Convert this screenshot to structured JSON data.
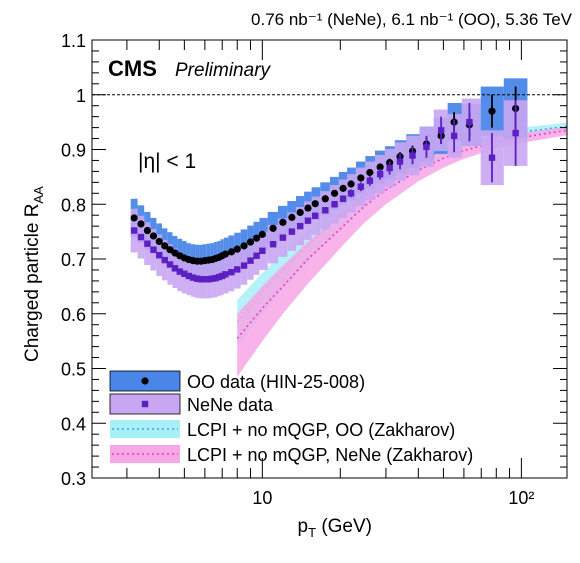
{
  "chart_data": {
    "type": "scatter",
    "header": "0.76 nb⁻¹ (NeNe), 6.1 nb⁻¹ (OO), 5.36 TeV",
    "experiment": "CMS",
    "status": "Preliminary",
    "annotation": "|η| < 1",
    "xlabel": "p",
    "xlabel_sub": "T",
    "xlabel_unit": " (GeV)",
    "ylabel": "Charged particle R",
    "ylabel_sub": "AA",
    "xscale": "log",
    "xlim": [
      2.2,
      150
    ],
    "ylim": [
      0.3,
      1.1
    ],
    "yticks": [
      "0.3",
      "0.4",
      "0.5",
      "0.6",
      "0.7",
      "0.8",
      "0.9",
      "1",
      "1.1"
    ],
    "xtick_labels": [
      "10",
      "10²"
    ],
    "reference_line": 1,
    "legend_position": "bottom-left",
    "series": [
      {
        "name": "OO data (HIN-25-008)",
        "color": "#000000",
        "band_color": "#4a86e8",
        "marker": "circle",
        "x": [
          3.2,
          3.4,
          3.6,
          3.8,
          4.0,
          4.2,
          4.4,
          4.6,
          4.8,
          5.0,
          5.2,
          5.4,
          5.6,
          5.8,
          6.0,
          6.2,
          6.4,
          6.6,
          6.8,
          7.0,
          7.2,
          7.6,
          8.0,
          8.5,
          9.0,
          9.5,
          10.0,
          11.0,
          12.0,
          13.0,
          14.0,
          15.0,
          16.0,
          17.5,
          19.0,
          20.5,
          22.0,
          24.0,
          26.0,
          28.5,
          31.0,
          34.0,
          38.0,
          43.0,
          49.0,
          55.0,
          63.0,
          77.0,
          95.0
        ],
        "y": [
          0.775,
          0.764,
          0.752,
          0.742,
          0.732,
          0.724,
          0.717,
          0.711,
          0.706,
          0.702,
          0.699,
          0.697,
          0.696,
          0.696,
          0.697,
          0.698,
          0.699,
          0.701,
          0.703,
          0.706,
          0.709,
          0.713,
          0.718,
          0.724,
          0.731,
          0.738,
          0.745,
          0.756,
          0.767,
          0.776,
          0.785,
          0.793,
          0.801,
          0.81,
          0.82,
          0.829,
          0.837,
          0.848,
          0.858,
          0.868,
          0.876,
          0.887,
          0.897,
          0.91,
          0.925,
          0.95,
          0.945,
          0.97,
          0.975
        ],
        "yerr_stat": [
          0.002,
          0.002,
          0.002,
          0.002,
          0.002,
          0.002,
          0.002,
          0.002,
          0.002,
          0.002,
          0.002,
          0.002,
          0.002,
          0.002,
          0.002,
          0.002,
          0.002,
          0.002,
          0.002,
          0.002,
          0.002,
          0.002,
          0.002,
          0.002,
          0.002,
          0.002,
          0.002,
          0.002,
          0.002,
          0.002,
          0.002,
          0.003,
          0.003,
          0.003,
          0.003,
          0.004,
          0.004,
          0.005,
          0.005,
          0.006,
          0.007,
          0.008,
          0.01,
          0.012,
          0.015,
          0.018,
          0.022,
          0.03,
          0.04
        ],
        "yerr_sys": [
          0.035,
          0.034,
          0.034,
          0.033,
          0.033,
          0.032,
          0.032,
          0.031,
          0.031,
          0.031,
          0.03,
          0.03,
          0.03,
          0.03,
          0.03,
          0.03,
          0.03,
          0.03,
          0.03,
          0.03,
          0.03,
          0.03,
          0.03,
          0.03,
          0.03,
          0.03,
          0.03,
          0.03,
          0.03,
          0.03,
          0.03,
          0.03,
          0.03,
          0.03,
          0.03,
          0.03,
          0.03,
          0.03,
          0.03,
          0.03,
          0.03,
          0.03,
          0.031,
          0.032,
          0.033,
          0.035,
          0.038,
          0.045,
          0.055
        ]
      },
      {
        "name": "NeNe data",
        "color": "#5b1fc2",
        "band_color": "#c9a6f2",
        "marker": "square",
        "x": [
          3.2,
          3.4,
          3.6,
          3.8,
          4.0,
          4.2,
          4.4,
          4.6,
          4.8,
          5.0,
          5.2,
          5.4,
          5.6,
          5.8,
          6.0,
          6.2,
          6.4,
          6.6,
          6.8,
          7.0,
          7.2,
          7.6,
          8.0,
          8.5,
          9.0,
          9.5,
          10.0,
          11.0,
          12.0,
          13.0,
          14.0,
          15.0,
          16.0,
          17.5,
          19.0,
          20.5,
          22.0,
          24.0,
          26.0,
          28.5,
          31.0,
          34.0,
          38.0,
          43.0,
          49.0,
          55.0,
          63.0,
          77.0,
          95.0
        ],
        "y": [
          0.752,
          0.74,
          0.728,
          0.717,
          0.707,
          0.698,
          0.69,
          0.683,
          0.677,
          0.673,
          0.669,
          0.666,
          0.664,
          0.663,
          0.663,
          0.663,
          0.664,
          0.665,
          0.667,
          0.669,
          0.672,
          0.676,
          0.681,
          0.688,
          0.697,
          0.706,
          0.715,
          0.727,
          0.739,
          0.75,
          0.76,
          0.77,
          0.779,
          0.789,
          0.8,
          0.81,
          0.82,
          0.832,
          0.843,
          0.855,
          0.866,
          0.878,
          0.889,
          0.905,
          0.935,
          0.925,
          0.95,
          0.885,
          0.93
        ],
        "yerr_stat": [
          0.003,
          0.003,
          0.003,
          0.003,
          0.003,
          0.003,
          0.003,
          0.003,
          0.003,
          0.003,
          0.003,
          0.003,
          0.003,
          0.003,
          0.003,
          0.003,
          0.003,
          0.003,
          0.003,
          0.003,
          0.003,
          0.003,
          0.003,
          0.003,
          0.003,
          0.003,
          0.003,
          0.003,
          0.004,
          0.004,
          0.004,
          0.004,
          0.005,
          0.005,
          0.006,
          0.006,
          0.007,
          0.008,
          0.009,
          0.01,
          0.012,
          0.014,
          0.016,
          0.02,
          0.025,
          0.03,
          0.035,
          0.045,
          0.06
        ],
        "yerr_sys": [
          0.04,
          0.039,
          0.039,
          0.038,
          0.038,
          0.037,
          0.037,
          0.036,
          0.036,
          0.036,
          0.035,
          0.035,
          0.035,
          0.035,
          0.035,
          0.035,
          0.035,
          0.035,
          0.035,
          0.035,
          0.035,
          0.035,
          0.035,
          0.035,
          0.035,
          0.035,
          0.035,
          0.035,
          0.035,
          0.035,
          0.035,
          0.035,
          0.035,
          0.035,
          0.035,
          0.035,
          0.035,
          0.035,
          0.035,
          0.035,
          0.035,
          0.035,
          0.036,
          0.037,
          0.038,
          0.04,
          0.043,
          0.05,
          0.06
        ]
      },
      {
        "name": "LCPI + no mQGP, OO (Zakharov)",
        "color": "#3aa6e8",
        "band_color": "#a8eff7",
        "marker": "dotted-line",
        "x": [
          8,
          10,
          12,
          15,
          20,
          25,
          30,
          40,
          50,
          60,
          80,
          100,
          150
        ],
        "y": [
          0.585,
          0.64,
          0.68,
          0.725,
          0.78,
          0.82,
          0.845,
          0.878,
          0.898,
          0.91,
          0.925,
          0.932,
          0.942
        ],
        "band_low": [
          0.54,
          0.6,
          0.645,
          0.695,
          0.755,
          0.797,
          0.825,
          0.862,
          0.885,
          0.899,
          0.916,
          0.924,
          0.935
        ],
        "band_high": [
          0.625,
          0.675,
          0.712,
          0.752,
          0.802,
          0.84,
          0.863,
          0.893,
          0.911,
          0.921,
          0.934,
          0.94,
          0.949
        ]
      },
      {
        "name": "LCPI + no mQGP, NeNe (Zakharov)",
        "color": "#e040c8",
        "band_color": "#f7a6e6",
        "marker": "dotted-line",
        "x": [
          8,
          10,
          12,
          15,
          20,
          25,
          30,
          40,
          50,
          60,
          80,
          100,
          150
        ],
        "y": [
          0.555,
          0.61,
          0.65,
          0.7,
          0.755,
          0.798,
          0.826,
          0.862,
          0.884,
          0.898,
          0.914,
          0.922,
          0.935
        ],
        "band_low": [
          0.485,
          0.55,
          0.6,
          0.655,
          0.72,
          0.768,
          0.8,
          0.842,
          0.867,
          0.883,
          0.902,
          0.912,
          0.926
        ],
        "band_high": [
          0.6,
          0.65,
          0.688,
          0.732,
          0.782,
          0.82,
          0.845,
          0.877,
          0.897,
          0.909,
          0.923,
          0.93,
          0.942
        ]
      }
    ]
  }
}
